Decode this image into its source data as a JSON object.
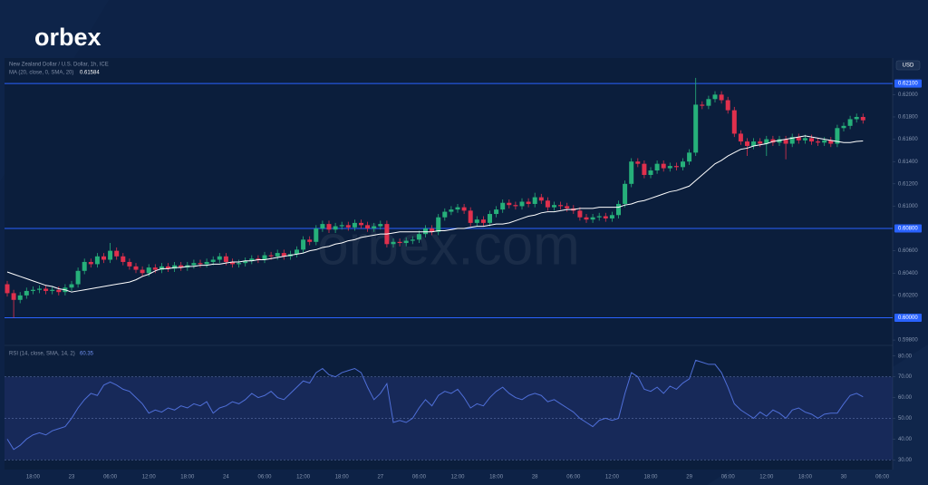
{
  "header": {
    "logo": "orbex"
  },
  "chart_data": [
    {
      "type": "candlestick",
      "title": "New Zealand Dollar / U.S. Dollar, 1h, ICE",
      "currency": "USD",
      "watermark": "orbex.com",
      "categories": [
        null,
        null,
        null,
        null,
        "18:00",
        null,
        null,
        null,
        null,
        null,
        "23",
        null,
        null,
        null,
        null,
        null,
        "06:00",
        null,
        null,
        null,
        null,
        null,
        "12:00",
        null,
        null,
        null,
        null,
        null,
        "18:00",
        null,
        null,
        null,
        null,
        null,
        "24",
        null,
        null,
        null,
        null,
        null,
        "06:00",
        null,
        null,
        null,
        null,
        null,
        "12:00",
        null,
        null,
        null,
        null,
        null,
        "18:00",
        null,
        null,
        null,
        null,
        null,
        "27",
        null,
        null,
        null,
        null,
        null,
        "06:00",
        null,
        null,
        null,
        null,
        null,
        "12:00",
        null,
        null,
        null,
        null,
        null,
        "18:00",
        null,
        null,
        null,
        null,
        null,
        "28",
        null,
        null,
        null,
        null,
        null,
        "06:00",
        null,
        null,
        null,
        null,
        null,
        "12:00",
        null,
        null,
        null,
        null,
        null,
        "18:00",
        null,
        null,
        null,
        null,
        null,
        "29",
        null,
        null,
        null,
        null,
        null,
        "06:00",
        null,
        null,
        null,
        null,
        null,
        "12:00",
        null,
        null,
        null,
        null,
        null,
        "18:00",
        null,
        null,
        null,
        null,
        null,
        "30",
        null,
        null,
        null,
        null,
        null,
        "06:00"
      ],
      "open": [
        0.603,
        0.6022,
        0.6016,
        0.602,
        0.6024,
        0.6025,
        0.6026,
        0.6024,
        0.6025,
        0.6023,
        0.6027,
        0.603,
        0.6042,
        0.605,
        0.6048,
        0.6055,
        0.6052,
        0.606,
        0.6055,
        0.605,
        0.6046,
        0.6043,
        0.604,
        0.6045,
        0.6043,
        0.6046,
        0.6044,
        0.6047,
        0.6045,
        0.6047,
        0.6049,
        0.6048,
        0.605,
        0.6052,
        0.6055,
        0.605,
        0.6048,
        0.6049,
        0.6051,
        0.6053,
        0.6052,
        0.6056,
        0.6055,
        0.6058,
        0.6055,
        0.6057,
        0.6061,
        0.607,
        0.6068,
        0.608,
        0.6084,
        0.6079,
        0.6082,
        0.6083,
        0.6081,
        0.6085,
        0.6083,
        0.608,
        0.6082,
        0.6084,
        0.6066,
        0.6068,
        0.6067,
        0.6069,
        0.607,
        0.6075,
        0.608,
        0.6077,
        0.609,
        0.6095,
        0.6097,
        0.6099,
        0.6096,
        0.6085,
        0.6088,
        0.6085,
        0.6093,
        0.6097,
        0.6103,
        0.6101,
        0.61,
        0.6104,
        0.6102,
        0.6108,
        0.6105,
        0.6099,
        0.6101,
        0.61,
        0.6098,
        0.6096,
        0.609,
        0.6088,
        0.609,
        0.6091,
        0.6089,
        0.6092,
        0.6102,
        0.612,
        0.614,
        0.6138,
        0.6128,
        0.6132,
        0.6138,
        0.6134,
        0.6136,
        0.6135,
        0.614,
        0.6148,
        0.6191,
        0.619,
        0.6196,
        0.62,
        0.6195,
        0.6186,
        0.6165,
        0.6158,
        0.6154,
        0.6158,
        0.6156,
        0.616,
        0.6157,
        0.616,
        0.6156,
        0.6162,
        0.6159,
        0.6161,
        0.6158,
        0.6157,
        0.6159,
        0.6156,
        0.617,
        0.6172,
        0.6178,
        0.618,
        null,
        null,
        null
      ],
      "high": [
        0.6033,
        0.6025,
        0.6023,
        0.6027,
        0.6028,
        0.6029,
        0.6029,
        0.6028,
        0.6028,
        0.603,
        0.6033,
        0.6045,
        0.6053,
        0.6053,
        0.6058,
        0.6058,
        0.6067,
        0.6063,
        0.6058,
        0.6053,
        0.6049,
        0.6046,
        0.6048,
        0.6048,
        0.6049,
        0.6049,
        0.605,
        0.605,
        0.605,
        0.6052,
        0.6052,
        0.6053,
        0.6055,
        0.6058,
        0.6058,
        0.6053,
        0.6052,
        0.6054,
        0.6056,
        0.6056,
        0.6059,
        0.6059,
        0.6061,
        0.6061,
        0.606,
        0.6064,
        0.6073,
        0.6073,
        0.6083,
        0.6087,
        0.6087,
        0.6085,
        0.6086,
        0.6086,
        0.6088,
        0.6088,
        0.6086,
        0.6085,
        0.6087,
        0.6087,
        0.6071,
        0.6071,
        0.6072,
        0.6073,
        0.6078,
        0.6083,
        0.6083,
        0.6093,
        0.6098,
        0.61,
        0.6102,
        0.6102,
        0.6099,
        0.6091,
        0.6091,
        0.6096,
        0.61,
        0.6106,
        0.6106,
        0.6104,
        0.6107,
        0.6107,
        0.6112,
        0.6111,
        0.6108,
        0.6104,
        0.6104,
        0.6103,
        0.6101,
        0.6099,
        0.6093,
        0.6093,
        0.6094,
        0.6094,
        0.6095,
        0.6105,
        0.6123,
        0.6143,
        0.6143,
        0.6141,
        0.6135,
        0.6141,
        0.6141,
        0.6139,
        0.6139,
        0.6143,
        0.6151,
        0.6215,
        0.6194,
        0.6199,
        0.6203,
        0.6203,
        0.6198,
        0.6189,
        0.6168,
        0.6161,
        0.6161,
        0.6161,
        0.6163,
        0.6163,
        0.6163,
        0.6163,
        0.6165,
        0.6165,
        0.6164,
        0.6164,
        0.6161,
        0.6162,
        0.6162,
        0.6173,
        0.6175,
        0.6181,
        0.6183,
        0.6183,
        null,
        null,
        null
      ],
      "low": [
        0.6019,
        0.6,
        0.6013,
        0.6017,
        0.6021,
        0.6022,
        0.6021,
        0.6021,
        0.602,
        0.602,
        0.6024,
        0.6027,
        0.6039,
        0.6045,
        0.6045,
        0.6049,
        0.6049,
        0.6052,
        0.6047,
        0.6043,
        0.604,
        0.6037,
        0.6037,
        0.604,
        0.604,
        0.6041,
        0.6041,
        0.6042,
        0.6042,
        0.6044,
        0.6045,
        0.6045,
        0.6047,
        0.6049,
        0.6047,
        0.6045,
        0.6045,
        0.6046,
        0.6048,
        0.6049,
        0.6049,
        0.6052,
        0.6052,
        0.6052,
        0.6052,
        0.6054,
        0.6058,
        0.6065,
        0.6065,
        0.6077,
        0.6076,
        0.6076,
        0.6079,
        0.6078,
        0.6078,
        0.608,
        0.6077,
        0.6077,
        0.6079,
        0.6063,
        0.6063,
        0.6064,
        0.6064,
        0.6066,
        0.6067,
        0.6072,
        0.6074,
        0.6074,
        0.6087,
        0.6092,
        0.6094,
        0.6093,
        0.6082,
        0.6082,
        0.6082,
        0.6082,
        0.609,
        0.6094,
        0.6098,
        0.6097,
        0.6097,
        0.6099,
        0.6099,
        0.6102,
        0.6096,
        0.6096,
        0.6097,
        0.6095,
        0.6093,
        0.6087,
        0.6085,
        0.6085,
        0.6087,
        0.6086,
        0.6086,
        0.6089,
        0.6099,
        0.6117,
        0.6135,
        0.6125,
        0.6125,
        0.6129,
        0.6131,
        0.6131,
        0.6132,
        0.6132,
        0.6137,
        0.6145,
        0.6187,
        0.6187,
        0.6193,
        0.6192,
        0.6183,
        0.6162,
        0.6155,
        0.6145,
        0.6151,
        0.6153,
        0.6145,
        0.6154,
        0.6154,
        0.6142,
        0.6153,
        0.6156,
        0.6156,
        0.6155,
        0.6154,
        0.6154,
        0.6153,
        0.6153,
        0.6167,
        0.6169,
        0.6175,
        0.6174,
        null,
        null,
        null
      ],
      "close": [
        0.6022,
        0.6016,
        0.602,
        0.6024,
        0.6025,
        0.6026,
        0.6024,
        0.6025,
        0.6023,
        0.6027,
        0.603,
        0.6042,
        0.605,
        0.6048,
        0.6055,
        0.6052,
        0.606,
        0.6055,
        0.605,
        0.6046,
        0.6043,
        0.604,
        0.6045,
        0.6043,
        0.6046,
        0.6044,
        0.6047,
        0.6045,
        0.6047,
        0.6049,
        0.6048,
        0.605,
        0.6052,
        0.6055,
        0.605,
        0.6048,
        0.6049,
        0.6051,
        0.6053,
        0.6052,
        0.6056,
        0.6055,
        0.6058,
        0.6055,
        0.6057,
        0.6061,
        0.607,
        0.6068,
        0.608,
        0.6084,
        0.6079,
        0.6082,
        0.6083,
        0.6081,
        0.6085,
        0.6083,
        0.608,
        0.6082,
        0.6084,
        0.6066,
        0.6068,
        0.6067,
        0.6069,
        0.607,
        0.6075,
        0.608,
        0.6077,
        0.609,
        0.6095,
        0.6097,
        0.6099,
        0.6096,
        0.6085,
        0.6088,
        0.6085,
        0.6093,
        0.6097,
        0.6103,
        0.6101,
        0.61,
        0.6104,
        0.6102,
        0.6108,
        0.6105,
        0.6099,
        0.6101,
        0.61,
        0.6098,
        0.6096,
        0.609,
        0.6088,
        0.609,
        0.6091,
        0.6089,
        0.6092,
        0.6102,
        0.612,
        0.614,
        0.6138,
        0.6128,
        0.6132,
        0.6138,
        0.6134,
        0.6136,
        0.6135,
        0.614,
        0.6148,
        0.6191,
        0.619,
        0.6196,
        0.62,
        0.6195,
        0.6186,
        0.6165,
        0.6158,
        0.6154,
        0.6158,
        0.6156,
        0.616,
        0.6157,
        0.616,
        0.6156,
        0.6162,
        0.6159,
        0.6161,
        0.6158,
        0.6157,
        0.6159,
        0.6156,
        0.617,
        0.6172,
        0.6178,
        0.618,
        0.6177,
        null,
        null,
        null
      ],
      "up_color": "#26b07a",
      "down_color": "#e0304d",
      "series": [
        {
          "name": "MA (20, close, 0, SMA, 20)",
          "color": "#ffffff",
          "values": [
            0.6041,
            0.6039,
            0.6037,
            0.6035,
            0.6033,
            0.6031,
            0.6029,
            0.6028,
            0.6026,
            0.6025,
            0.6023,
            0.6024,
            0.6025,
            0.6026,
            0.6027,
            0.6028,
            0.6029,
            0.603,
            0.6031,
            0.6032,
            0.6034,
            0.6037,
            0.6039,
            0.6042,
            0.6044,
            0.6044,
            0.6045,
            0.6045,
            0.6046,
            0.6046,
            0.6047,
            0.6047,
            0.6048,
            0.6048,
            0.6049,
            0.605,
            0.605,
            0.6051,
            0.6051,
            0.6052,
            0.6052,
            0.6053,
            0.6054,
            0.6055,
            0.6056,
            0.6057,
            0.6058,
            0.606,
            0.6061,
            0.6063,
            0.6064,
            0.6066,
            0.6067,
            0.6069,
            0.607,
            0.6072,
            0.6073,
            0.6074,
            0.6075,
            0.6075,
            0.6076,
            0.6077,
            0.6077,
            0.6077,
            0.6077,
            0.6077,
            0.6077,
            0.6078,
            0.6078,
            0.6079,
            0.608,
            0.608,
            0.6081,
            0.6082,
            0.6082,
            0.6083,
            0.6084,
            0.6084,
            0.6085,
            0.6087,
            0.6089,
            0.6091,
            0.6092,
            0.6094,
            0.6095,
            0.6095,
            0.6096,
            0.6097,
            0.6097,
            0.6098,
            0.6098,
            0.6098,
            0.6099,
            0.6099,
            0.6099,
            0.6099,
            0.6101,
            0.6102,
            0.6104,
            0.6105,
            0.6107,
            0.6109,
            0.6111,
            0.6113,
            0.6114,
            0.6116,
            0.6118,
            0.6123,
            0.6128,
            0.6133,
            0.6138,
            0.6141,
            0.6145,
            0.6148,
            0.6151,
            0.6152,
            0.6154,
            0.6155,
            0.6156,
            0.6158,
            0.6159,
            0.616,
            0.6161,
            0.6162,
            0.6163,
            0.6162,
            0.6161,
            0.616,
            0.6159,
            0.6158,
            0.6157,
            0.6157,
            0.6158,
            0.61584,
            null,
            null,
            null
          ]
        }
      ],
      "levels": [
        {
          "value": 0.621,
          "label": "0.62100"
        },
        {
          "value": 0.608,
          "label": "0.60800"
        },
        {
          "value": 0.6,
          "label": "0.60000"
        }
      ],
      "level_color": "#2962ff",
      "ylim": [
        0.5976,
        0.6232
      ],
      "yticks": [
        {
          "value": 0.598,
          "label": "0.59800"
        },
        {
          "value": 0.602,
          "label": "0.60200"
        },
        {
          "value": 0.604,
          "label": "0.60400"
        },
        {
          "value": 0.606,
          "label": "0.60600"
        },
        {
          "value": 0.61,
          "label": "0.61000"
        },
        {
          "value": 0.612,
          "label": "0.61200"
        },
        {
          "value": 0.614,
          "label": "0.61400"
        },
        {
          "value": 0.616,
          "label": "0.61600"
        },
        {
          "value": 0.618,
          "label": "0.61800"
        },
        {
          "value": 0.62,
          "label": "0.62000"
        }
      ]
    },
    {
      "type": "line",
      "series": [
        {
          "name": "RSI (14, close, SMA, 14, 2)",
          "color": "#4f6fd8",
          "values": [
            40,
            35,
            37,
            40,
            42,
            43,
            42,
            44,
            45,
            46,
            50,
            55,
            59,
            62,
            61,
            66,
            67.5,
            66,
            64,
            63,
            60,
            57,
            52.5,
            54,
            53,
            55,
            54,
            56,
            55,
            57,
            56,
            58,
            52.5,
            55,
            56,
            58,
            57,
            59,
            62,
            60,
            61,
            63,
            60,
            59,
            62,
            65,
            68,
            67,
            72,
            74,
            71,
            70,
            72,
            73,
            74,
            72,
            65,
            59,
            62,
            66.7,
            48,
            49,
            48,
            50,
            55,
            59,
            56,
            61,
            63,
            62,
            64,
            60,
            55,
            57,
            56,
            60,
            63,
            65,
            62,
            60,
            59,
            61,
            62,
            61,
            58,
            59,
            57,
            55,
            53,
            50,
            48,
            46,
            49,
            50,
            49,
            50,
            62,
            72,
            70,
            64,
            63,
            65,
            62,
            65.5,
            64,
            67,
            69,
            78,
            77,
            76,
            76,
            72,
            65,
            57,
            54,
            52,
            50,
            53,
            51,
            54,
            52.5,
            50,
            54,
            55,
            53,
            52,
            50,
            52,
            52.5,
            52.5,
            57,
            61,
            62,
            60.35,
            null,
            null,
            null
          ]
        }
      ],
      "band": [
        30,
        70
      ],
      "midline": 50,
      "ylim": [
        26.6,
        84.7
      ],
      "yticks": [
        {
          "value": 30,
          "label": "30.00"
        },
        {
          "value": 40,
          "label": "40.00"
        },
        {
          "value": 50,
          "label": "50.00"
        },
        {
          "value": 60,
          "label": "60.00"
        },
        {
          "value": 70,
          "label": "70.00"
        },
        {
          "value": 80,
          "label": "80.00"
        }
      ]
    }
  ]
}
